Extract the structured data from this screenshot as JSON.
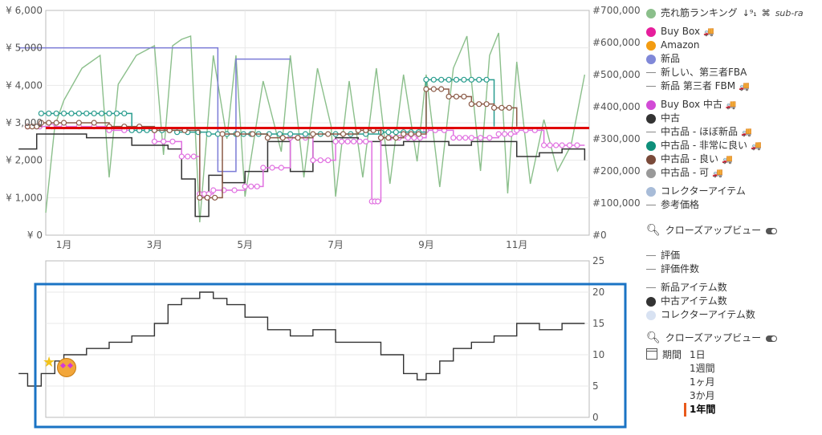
{
  "chart_data": [
    {
      "type": "line",
      "yleft_label_ticks": [
        "¥ 0",
        "¥ 1,000",
        "¥ 2,000",
        "¥ 3,000",
        "¥ 4,000",
        "¥ 5,000",
        "¥ 6,000"
      ],
      "yleft_values": [
        0,
        1000,
        2000,
        3000,
        4000,
        5000,
        6000
      ],
      "yright_label_ticks": [
        "#0",
        "#100,000",
        "#200,000",
        "#300,000",
        "#400,000",
        "#500,000",
        "#600,000",
        "#700,000"
      ],
      "yright_values": [
        0,
        100000,
        200000,
        300000,
        400000,
        500000,
        600000,
        700000
      ],
      "x_ticks": [
        "1月",
        "3月",
        "5月",
        "7月",
        "9月",
        "11月"
      ],
      "x_tick_months": [
        1,
        3,
        5,
        7,
        9,
        11
      ],
      "ylim_left": [
        0,
        6000
      ],
      "ylim_right": [
        0,
        700000
      ],
      "reference_line": {
        "value": 2860,
        "color": "#e00000"
      },
      "series": [
        {
          "name": "売れ筋ランキング",
          "color": "#8bbf8b",
          "axis": "right",
          "x": [
            0.6,
            0.8,
            1.0,
            1.4,
            1.8,
            2.0,
            2.2,
            2.6,
            3.0,
            3.2,
            3.4,
            3.6,
            3.8,
            4.0,
            4.3,
            4.6,
            4.8,
            5.0,
            5.4,
            5.8,
            6.0,
            6.3,
            6.6,
            6.9,
            7.0,
            7.3,
            7.6,
            7.9,
            8.2,
            8.5,
            8.8,
            9.0,
            9.3,
            9.6,
            9.9,
            10.2,
            10.4,
            10.6,
            10.8,
            11.0,
            11.3,
            11.6,
            11.9,
            12.2,
            12.5
          ],
          "y": [
            70000,
            340000,
            420000,
            520000,
            560000,
            180000,
            470000,
            560000,
            590000,
            250000,
            590000,
            610000,
            620000,
            40000,
            560000,
            300000,
            560000,
            120000,
            480000,
            260000,
            560000,
            180000,
            520000,
            340000,
            120000,
            480000,
            180000,
            520000,
            160000,
            500000,
            230000,
            500000,
            150000,
            520000,
            620000,
            200000,
            560000,
            630000,
            130000,
            540000,
            160000,
            360000,
            200000,
            280000,
            500000
          ]
        },
        {
          "name": "新品",
          "color": "#7b7bd6",
          "axis": "left",
          "x": [
            0.0,
            3.3,
            3.3,
            4.0,
            4.0,
            4.4,
            4.4,
            4.8,
            4.8,
            6.0
          ],
          "y": [
            5000,
            5000,
            5000,
            5000,
            5000,
            5000,
            1700,
            1700,
            4700,
            4700
          ]
        },
        {
          "name": "中古",
          "color": "#333333",
          "axis": "left",
          "x": [
            0.0,
            0.4,
            0.6,
            1.5,
            2.5,
            3.3,
            3.6,
            3.9,
            4.2,
            4.5,
            5.0,
            5.5,
            6.0,
            6.5,
            7.0,
            7.5,
            8.0,
            8.5,
            9.0,
            9.5,
            10.0,
            10.5,
            11.0,
            11.5,
            12.0,
            12.5
          ],
          "y": [
            2300,
            2700,
            2700,
            2600,
            2400,
            2300,
            1500,
            500,
            1600,
            1400,
            1700,
            2500,
            1700,
            2500,
            2600,
            2500,
            2400,
            2500,
            2500,
            2400,
            2500,
            2500,
            2100,
            2200,
            2300,
            2000
          ]
        },
        {
          "name": "Buy Box 中古",
          "color": "#e070e0",
          "axis": "left",
          "x": [
            0.2,
            1.0,
            2.0,
            3.0,
            3.6,
            4.0,
            4.3,
            5.0,
            5.4,
            6.0,
            6.5,
            7.0,
            7.4,
            7.8,
            8.0,
            8.6,
            9.0,
            9.6,
            10.0,
            10.6,
            11.0,
            11.6,
            12.0,
            12.5
          ],
          "y": [
            2900,
            2900,
            2800,
            2500,
            2100,
            1100,
            1200,
            1300,
            1800,
            2600,
            2000,
            2500,
            2500,
            900,
            2600,
            2600,
            2800,
            2600,
            2600,
            2700,
            2800,
            2400,
            2400,
            2400
          ]
        },
        {
          "name": "中古品 - 非常に良い",
          "color": "#2a9d8f",
          "axis": "left",
          "x": [
            0.5,
            1.0,
            1.5,
            2.0,
            2.5,
            3.0,
            3.5,
            4.2,
            4.8,
            5.3,
            6.0,
            7.0,
            8.0,
            8.5,
            9.0,
            9.5,
            10.0,
            10.5
          ],
          "y": [
            3250,
            3250,
            3250,
            3250,
            2800,
            2800,
            2750,
            2700,
            2700,
            2700,
            2700,
            2700,
            2750,
            2750,
            4150,
            4150,
            4150,
            2900
          ]
        },
        {
          "name": "中古品 - 良い",
          "color": "#8b5a46",
          "axis": "left",
          "x": [
            0.2,
            0.5,
            1.0,
            2.0,
            3.0,
            4.0,
            4.5,
            5.5,
            6.5,
            7.5,
            8.0,
            8.5,
            9.0,
            9.5,
            10.0,
            10.5,
            11.0
          ],
          "y": [
            2900,
            3000,
            3000,
            2900,
            2800,
            1000,
            2700,
            2600,
            2700,
            2800,
            2600,
            2700,
            3900,
            3700,
            3500,
            3400,
            2900
          ]
        }
      ]
    },
    {
      "type": "line",
      "yright_label_ticks": [
        "0",
        "5",
        "10",
        "15",
        "20",
        "25"
      ],
      "yright_values": [
        0,
        5,
        10,
        15,
        20,
        25
      ],
      "ylim": [
        0,
        25
      ],
      "series": [
        {
          "name": "中古アイテム数",
          "color": "#333333",
          "x": [
            0.0,
            0.2,
            0.5,
            0.8,
            1.0,
            1.5,
            2.0,
            2.5,
            3.0,
            3.3,
            3.6,
            4.0,
            4.3,
            4.6,
            5.0,
            5.5,
            6.0,
            6.5,
            7.0,
            7.5,
            8.0,
            8.5,
            8.8,
            9.0,
            9.3,
            9.6,
            10.0,
            10.5,
            11.0,
            11.5,
            12.0,
            12.5
          ],
          "y": [
            7,
            5,
            7,
            9,
            10,
            11,
            12,
            13,
            15,
            18,
            19,
            20,
            19,
            18,
            16,
            14,
            13,
            14,
            12,
            12,
            10,
            7,
            6,
            7,
            9,
            11,
            12,
            13,
            15,
            14,
            15,
            15
          ]
        }
      ]
    }
  ],
  "legend": {
    "sales_rank": "売れ筋ランキング",
    "sales_rank_sub": "sub-ra",
    "buybox": "Buy Box",
    "amazon": "Amazon",
    "new": "新品",
    "new_fba": "新しい、第三者FBA",
    "new_fbm": "新品 第三者 FBM",
    "buybox_used": "Buy Box 中古",
    "used": "中古",
    "used_like_new": "中古品 - ほぼ新品",
    "used_very_good": "中古品 - 非常に良い",
    "used_good": "中古品 - 良い",
    "used_acceptable": "中古品 - 可",
    "collectible": "コレクターアイテム",
    "list_price": "参考価格",
    "closeup": "クローズアップビュー",
    "rating": "評価",
    "rating_count": "評価件数",
    "new_count": "新品アイテム数",
    "used_count": "中古アイテム数",
    "collectible_count": "コレクターアイテム数",
    "closeup2": "クローズアップビュー",
    "period_label": "期間",
    "periods": [
      "1日",
      "1週間",
      "1ヶ月",
      "3か月",
      "1年間"
    ]
  },
  "colors": {
    "sales_rank": "#8bbf8b",
    "buybox": "#e61e9c",
    "amazon": "#f39c12",
    "new": "#8088d8",
    "buybox_used": "#d24bd6",
    "used": "#333333",
    "used_very_good": "#0e8f7a",
    "used_good": "#7a4a3a",
    "used_acceptable": "#999999",
    "collectible": "#a8bcd8",
    "collectible_count": "#d8e2f2",
    "highlight_box": "#1a73c4"
  }
}
